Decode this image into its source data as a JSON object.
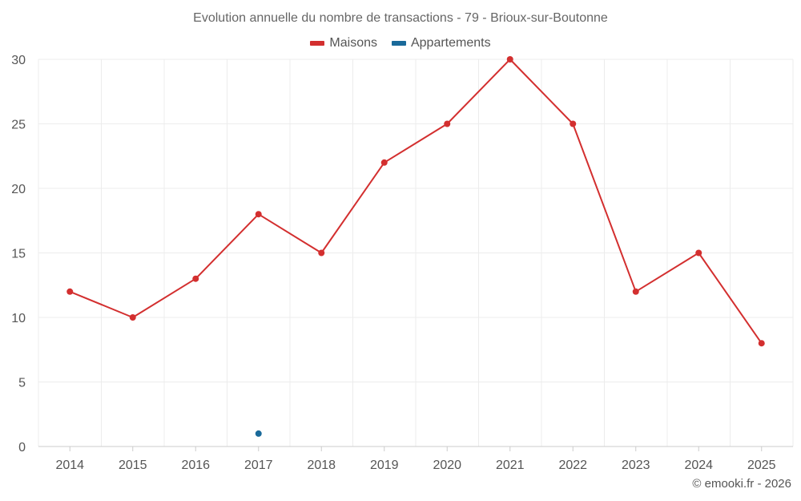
{
  "chart_data": {
    "type": "line",
    "title": "Evolution annuelle du nombre de transactions - 79 - Brioux-sur-Boutonne",
    "categories": [
      "2014",
      "2015",
      "2016",
      "2017",
      "2018",
      "2019",
      "2020",
      "2021",
      "2022",
      "2023",
      "2024",
      "2025"
    ],
    "series": [
      {
        "name": "Maisons",
        "color": "#d32f2f",
        "values": [
          12,
          10,
          13,
          18,
          15,
          22,
          25,
          30,
          25,
          12,
          15,
          8
        ]
      },
      {
        "name": "Appartements",
        "color": "#1a6a9a",
        "values": [
          null,
          null,
          null,
          1,
          null,
          null,
          null,
          null,
          null,
          null,
          null,
          null
        ]
      }
    ],
    "yticks": [
      "0",
      "5",
      "10",
      "15",
      "20",
      "25",
      "30"
    ],
    "ylim": [
      0,
      30
    ],
    "grid": true,
    "legend_position": "top-center"
  },
  "credit": "© emooki.fr - 2026"
}
